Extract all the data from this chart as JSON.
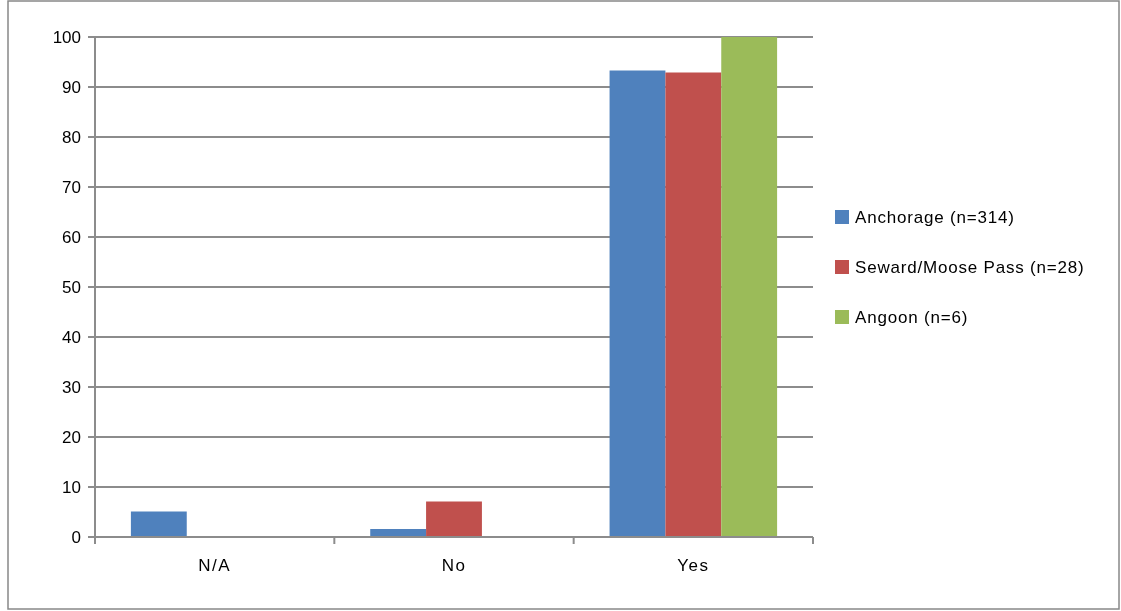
{
  "chart_data": {
    "type": "bar",
    "categories": [
      "N/A",
      "No",
      "Yes"
    ],
    "series": [
      {
        "name": "Anchorage (n=314)",
        "color": "#4f81bd",
        "values": [
          5.1,
          1.6,
          93.3
        ]
      },
      {
        "name": "Seward/Moose Pass (n=28)",
        "color": "#c0504d",
        "values": [
          null,
          7.1,
          92.9
        ]
      },
      {
        "name": "Angoon (n=6)",
        "color": "#9bbb59",
        "values": [
          null,
          null,
          100
        ]
      }
    ],
    "ylim": [
      0,
      100
    ],
    "yticks": [
      0,
      10,
      20,
      30,
      40,
      50,
      60,
      70,
      80,
      90,
      100
    ],
    "grid": "y",
    "legend": "right"
  }
}
